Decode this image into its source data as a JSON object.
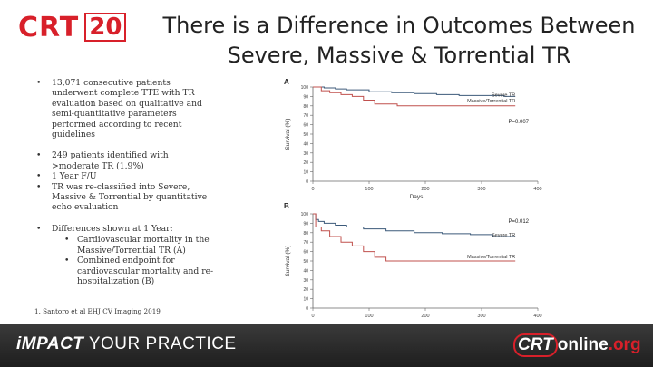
{
  "logo": {
    "crt": "CRT",
    "year": "20"
  },
  "title": {
    "line1": "There is a Difference in Outcomes Between",
    "line2": "Severe, Massive & Torrential TR"
  },
  "bullets": {
    "b1": "13,071 consecutive patients underwent complete TTE with TR evaluation based on qualitative and semi-quantitative parameters performed according to recent guidelines",
    "b2": "249 patients identified with >moderate TR (1.9%)",
    "b3": "1 Year F/U",
    "b4": "TR was re-classified into Severe, Massive & Torrential by quantitative echo evaluation",
    "b5": "Differences shown at 1 Year:",
    "sub1": "Cardiovascular mortality in the Massive/Torrential TR (A)",
    "sub2": "Combined endpoint for cardiovascular mortality and re-hospitalization (B)"
  },
  "reference": "1. Santoro et al EHJ CV Imaging 2019",
  "footer": {
    "tag_bold": "iMPACT",
    "tag_rest": " YOUR PRACTICE",
    "site_a": "CRT",
    "site_b": "online",
    "site_c": ".org"
  },
  "chart_data": [
    {
      "type": "line",
      "panel": "A",
      "xlabel": "Days",
      "ylabel": "Survival (%)",
      "xlim": [
        0,
        400
      ],
      "ylim": [
        0,
        100
      ],
      "x_ticks": [
        "0",
        "100",
        "200",
        "300",
        "400"
      ],
      "y_ticks": [
        "0",
        "10",
        "20",
        "30",
        "40",
        "50",
        "60",
        "70",
        "80",
        "90",
        "100"
      ],
      "annotation": "P=0.007",
      "series": [
        {
          "name": "Severe TR",
          "color": "#3c5a7a",
          "x": [
            0,
            20,
            40,
            60,
            100,
            140,
            180,
            220,
            260,
            300,
            340,
            360
          ],
          "y": [
            100,
            99,
            98,
            97,
            95,
            94,
            93,
            92,
            91,
            91,
            90,
            90
          ]
        },
        {
          "name": "Massive/Torrential TR",
          "color": "#c0504d",
          "x": [
            0,
            15,
            30,
            50,
            70,
            90,
            110,
            150,
            200,
            250,
            300,
            360
          ],
          "y": [
            100,
            96,
            94,
            92,
            90,
            86,
            82,
            80,
            80,
            80,
            80,
            80
          ]
        }
      ]
    },
    {
      "type": "line",
      "panel": "B",
      "xlabel": "Days",
      "ylabel": "Survival (%)",
      "xlim": [
        0,
        400
      ],
      "ylim": [
        0,
        100
      ],
      "x_ticks": [
        "0",
        "100",
        "200",
        "300",
        "400"
      ],
      "y_ticks": [
        "0",
        "10",
        "20",
        "30",
        "40",
        "50",
        "60",
        "70",
        "80",
        "90",
        "100"
      ],
      "annotation": "P=0.012",
      "series": [
        {
          "name": "Severe TR",
          "color": "#3c5a7a",
          "x": [
            0,
            5,
            10,
            20,
            40,
            60,
            90,
            130,
            180,
            230,
            280,
            320,
            360
          ],
          "y": [
            100,
            94,
            92,
            90,
            88,
            86,
            84,
            82,
            80,
            79,
            78,
            76,
            76
          ]
        },
        {
          "name": "Massive/Torrential TR",
          "color": "#c0504d",
          "x": [
            0,
            5,
            15,
            30,
            50,
            70,
            90,
            110,
            130,
            160,
            200,
            260,
            360
          ],
          "y": [
            100,
            86,
            82,
            76,
            70,
            66,
            60,
            54,
            50,
            50,
            50,
            50,
            50
          ]
        }
      ]
    }
  ]
}
